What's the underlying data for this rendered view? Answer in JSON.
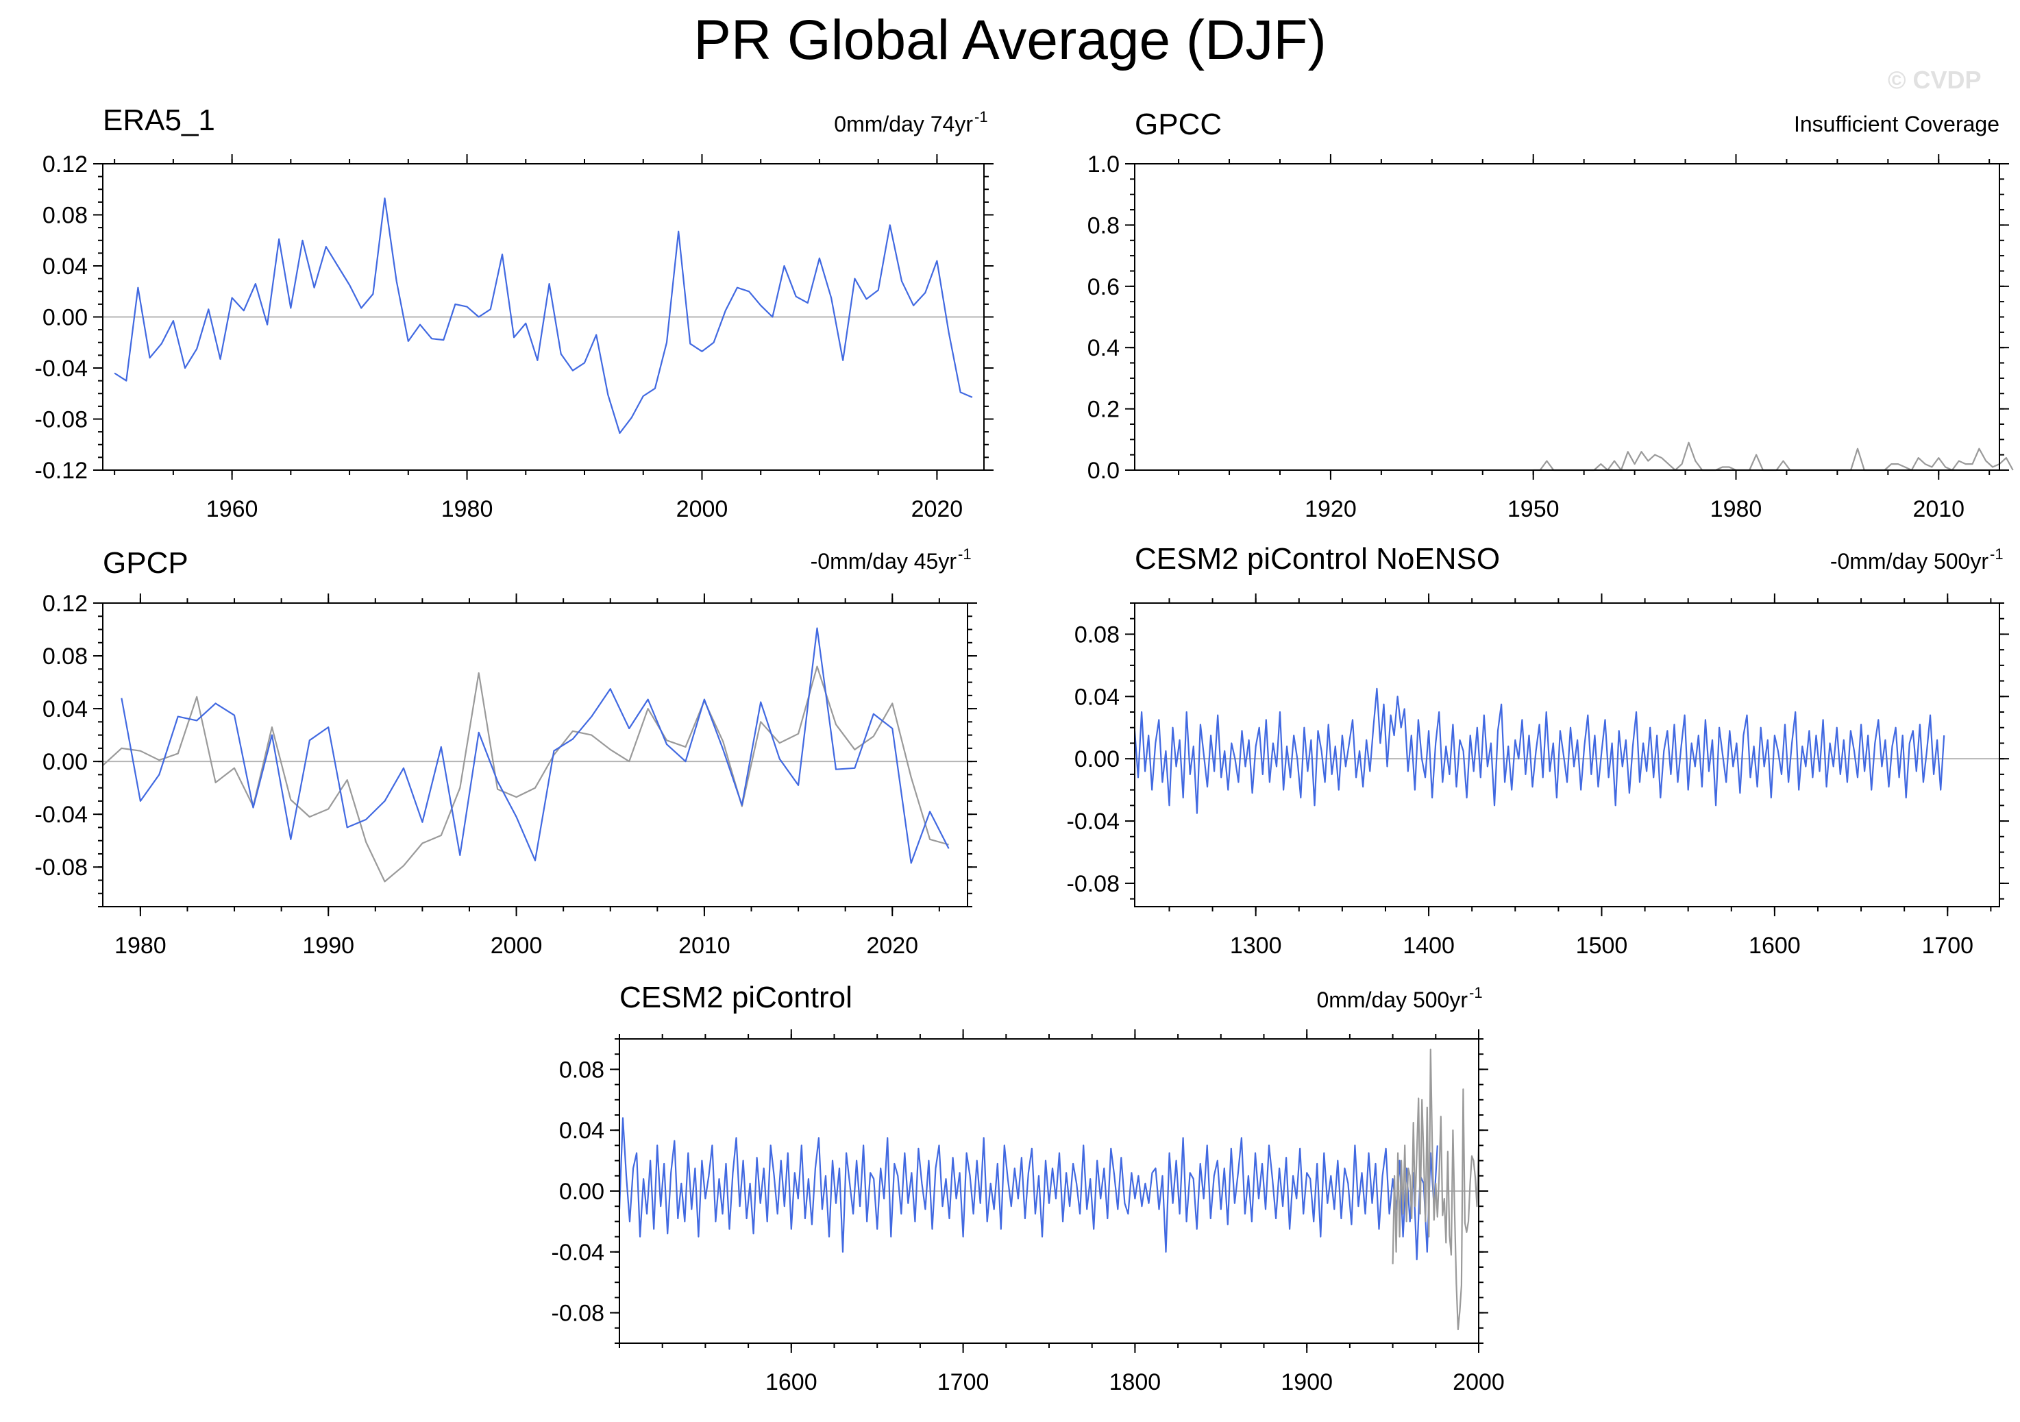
{
  "title": "PR Global Average (DJF)",
  "watermark": "© CVDP",
  "colors": {
    "primary": "#4169e1",
    "reference": "#9a9a9a",
    "zero_line": "#b4b4b4"
  },
  "chart_data": [
    {
      "id": "era5",
      "type": "line",
      "title": "ERA5_1",
      "trend_label": "0mm/day 74yr",
      "trend_sup": "-1",
      "xlim": [
        1949,
        2024
      ],
      "ylim": [
        -0.12,
        0.12
      ],
      "xticks": [
        1960,
        1980,
        2000,
        2020
      ],
      "yticks": [
        "0.12",
        "0.08",
        "0.04",
        "0.00",
        "-0.04",
        "-0.08",
        "-0.12"
      ],
      "series": [
        {
          "role": "primary",
          "x_start": 1950,
          "values": [
            -0.044,
            -0.05,
            0.023,
            -0.032,
            -0.021,
            -0.003,
            -0.04,
            -0.025,
            0.006,
            -0.033,
            0.015,
            0.005,
            0.026,
            -0.006,
            0.061,
            0.007,
            0.06,
            0.023,
            0.055,
            0.04,
            0.025,
            0.007,
            0.018,
            0.093,
            0.028,
            -0.019,
            -0.006,
            -0.017,
            -0.018,
            0.01,
            0.008,
            0.0,
            0.006,
            0.049,
            -0.016,
            -0.005,
            -0.034,
            0.026,
            -0.029,
            -0.042,
            -0.036,
            -0.014,
            -0.061,
            -0.091,
            -0.079,
            -0.062,
            -0.056,
            -0.02,
            0.067,
            -0.021,
            -0.027,
            -0.02,
            0.005,
            0.023,
            0.02,
            0.009,
            0.0,
            0.04,
            0.016,
            0.011,
            0.046,
            0.015,
            -0.034,
            0.03,
            0.014,
            0.021,
            0.072,
            0.028,
            0.009,
            0.019,
            0.044,
            -0.012,
            -0.059,
            -0.063
          ]
        }
      ]
    },
    {
      "id": "gpcc",
      "type": "line",
      "title": "GPCC",
      "trend_label": "Insufficient Coverage",
      "trend_sup": "",
      "xlim": [
        1891,
        2019
      ],
      "ylim": [
        0,
        1
      ],
      "xticks": [
        1920,
        1950,
        1980,
        2010
      ],
      "yticks": [
        "1.0",
        "0.8",
        "0.6",
        "0.4",
        "0.2",
        "0.0"
      ],
      "series": [
        {
          "role": "reference",
          "segments": [
            {
              "x_start": 1950,
              "values": [
                0.0,
                0.0,
                0.03,
                0.0,
                0.0,
                0.0,
                0.0,
                0.0,
                0.0,
                0.0,
                0.02,
                0.0,
                0.03,
                0.0,
                0.06,
                0.02,
                0.06,
                0.03,
                0.05,
                0.04,
                0.02,
                0.0,
                0.02,
                0.09,
                0.03,
                0.0,
                0.0,
                0.0,
                0.01,
                0.01,
                0.0,
                0.0,
                0.0,
                0.05,
                0.0,
                0.0,
                0.0,
                0.03,
                0.0,
                0.0,
                0.0,
                0.0,
                0.0,
                0.0,
                0.0,
                0.0,
                0.0,
                0.0,
                0.07,
                0.0,
                0.0,
                0.0,
                0.0,
                0.02,
                0.02,
                0.01,
                0.0,
                0.04,
                0.02,
                0.01,
                0.04,
                0.01,
                0.0,
                0.03,
                0.02,
                0.02,
                0.07,
                0.03,
                0.01,
                0.02,
                0.04,
                0.0
              ]
            }
          ]
        }
      ]
    },
    {
      "id": "gpcp",
      "type": "line",
      "title": "GPCP",
      "trend_label": "-0mm/day 45yr",
      "trend_sup": "-1",
      "xlim": [
        1978,
        2024
      ],
      "ylim": [
        -0.11,
        0.12
      ],
      "xticks": [
        1980,
        1990,
        2000,
        2010,
        2020
      ],
      "yticks": [
        "0.12",
        "0.08",
        "0.04",
        "0.00",
        "-0.04",
        "-0.08"
      ],
      "series": [
        {
          "role": "reference",
          "x_start": 1978,
          "values": [
            -0.003,
            0.01,
            0.008,
            0.001,
            0.006,
            0.049,
            -0.016,
            -0.005,
            -0.034,
            0.026,
            -0.029,
            -0.042,
            -0.036,
            -0.014,
            -0.061,
            -0.091,
            -0.079,
            -0.062,
            -0.056,
            -0.02,
            0.067,
            -0.021,
            -0.027,
            -0.02,
            0.005,
            0.023,
            0.02,
            0.009,
            0.0,
            0.04,
            0.016,
            0.011,
            0.046,
            0.015,
            -0.034,
            0.03,
            0.014,
            0.021,
            0.072,
            0.028,
            0.009,
            0.019,
            0.044,
            -0.012,
            -0.059,
            -0.063
          ]
        },
        {
          "role": "primary",
          "x_start": 1979,
          "values": [
            0.048,
            -0.03,
            -0.01,
            0.034,
            0.031,
            0.044,
            0.035,
            -0.035,
            0.02,
            -0.059,
            0.016,
            0.026,
            -0.05,
            -0.044,
            -0.03,
            -0.005,
            -0.046,
            0.011,
            -0.071,
            0.022,
            -0.015,
            -0.042,
            -0.075,
            0.008,
            0.017,
            0.034,
            0.055,
            0.025,
            0.047,
            0.013,
            0.0,
            0.047,
            0.009,
            -0.033,
            0.045,
            0.002,
            -0.018,
            0.101,
            -0.006,
            -0.005,
            0.036,
            0.025,
            -0.077,
            -0.038,
            -0.066
          ]
        }
      ]
    },
    {
      "id": "noenso",
      "type": "line",
      "title": "CESM2 piControl NoENSO",
      "trend_label": "-0mm/day 500yr",
      "trend_sup": "-1",
      "xlim": [
        1230,
        1730
      ],
      "ylim": [
        -0.095,
        0.1
      ],
      "xticks": [
        1300,
        1400,
        1500,
        1600,
        1700
      ],
      "yticks": [
        "0.08",
        "0.04",
        "0.00",
        "-0.04",
        "-0.08"
      ],
      "series": [
        {
          "role": "primary",
          "x_start": 1230,
          "x_step": 2,
          "values": [
            0.018,
            -0.012,
            0.03,
            -0.008,
            0.015,
            -0.02,
            0.01,
            0.025,
            -0.015,
            0.005,
            -0.03,
            0.02,
            -0.005,
            0.012,
            -0.025,
            0.03,
            -0.01,
            0.008,
            -0.035,
            0.022,
            0.002,
            -0.018,
            0.015,
            -0.008,
            0.028,
            -0.012,
            0.005,
            -0.02,
            0.01,
            0.0,
            -0.015,
            0.018,
            -0.005,
            0.012,
            -0.022,
            0.008,
            0.02,
            -0.01,
            0.025,
            -0.015,
            0.01,
            -0.005,
            0.03,
            -0.02,
            0.008,
            -0.012,
            0.015,
            0.0,
            -0.025,
            0.02,
            -0.008,
            0.012,
            -0.03,
            0.018,
            0.005,
            -0.015,
            0.022,
            -0.01,
            0.008,
            -0.02,
            0.015,
            -0.005,
            0.01,
            0.025,
            -0.012,
            0.005,
            -0.018,
            0.012,
            -0.008,
            0.02,
            0.045,
            0.01,
            0.035,
            -0.005,
            0.028,
            0.015,
            0.04,
            0.02,
            0.032,
            -0.008,
            0.015,
            -0.02,
            0.025,
            0.0,
            -0.012,
            0.018,
            -0.025,
            0.01,
            0.03,
            -0.015,
            0.008,
            -0.01,
            0.022,
            -0.018,
            0.012,
            0.005,
            -0.025,
            0.015,
            -0.008,
            0.02,
            -0.012,
            0.028,
            -0.005,
            0.01,
            -0.03,
            0.018,
            0.035,
            -0.015,
            0.008,
            -0.02,
            0.012,
            0.0,
            0.025,
            -0.01,
            0.015,
            -0.018,
            0.005,
            0.022,
            -0.012,
            0.03,
            -0.008,
            0.01,
            -0.025,
            0.018,
            0.002,
            -0.015,
            0.02,
            -0.005,
            0.012,
            -0.02,
            0.008,
            0.028,
            -0.01,
            0.015,
            -0.018,
            0.005,
            0.025,
            -0.012,
            0.01,
            -0.03,
            0.018,
            -0.005,
            0.012,
            -0.022,
            0.008,
            0.03,
            -0.015,
            0.01,
            -0.008,
            0.02,
            -0.012,
            0.015,
            -0.025,
            0.005,
            0.018,
            -0.01,
            0.022,
            -0.015,
            0.008,
            0.028,
            -0.02,
            0.01,
            -0.005,
            0.015,
            -0.018,
            0.025,
            -0.008,
            0.012,
            -0.03,
            0.02,
            0.002,
            -0.015,
            0.018,
            -0.005,
            0.01,
            -0.022,
            0.015,
            0.028,
            -0.012,
            0.008,
            -0.018,
            0.02,
            -0.005,
            0.012,
            -0.025,
            0.015,
            0.005,
            -0.01,
            0.022,
            -0.015,
            0.01,
            0.03,
            -0.02,
            0.008,
            -0.005,
            0.018,
            -0.012,
            0.015,
            -0.008,
            0.025,
            -0.018,
            0.01,
            -0.005,
            0.02,
            -0.01,
            0.012,
            -0.015,
            0.018,
            0.005,
            -0.012,
            0.022,
            -0.008,
            0.015,
            -0.02,
            0.01,
            0.025,
            -0.005,
            0.012,
            -0.018,
            0.008,
            0.02,
            -0.012,
            0.015,
            -0.025,
            0.01,
            0.018,
            -0.008,
            0.022,
            -0.015,
            0.005,
            0.028,
            -0.01,
            0.012,
            -0.02,
            0.015
          ]
        }
      ]
    },
    {
      "id": "picontrol",
      "type": "line",
      "title": "CESM2 piControl",
      "trend_label": "0mm/day 500yr",
      "trend_sup": "-1",
      "xlim": [
        1500,
        2000
      ],
      "ylim": [
        -0.1,
        0.1
      ],
      "xticks": [
        1600,
        1700,
        1800,
        1900,
        2000
      ],
      "yticks": [
        "0.08",
        "0.04",
        "0.00",
        "-0.04",
        "-0.08"
      ],
      "series": [
        {
          "role": "primary",
          "x_start": 1500,
          "x_step": 2,
          "values": [
            -0.012,
            0.048,
            0.01,
            -0.02,
            0.015,
            0.025,
            -0.03,
            0.008,
            -0.015,
            0.02,
            -0.025,
            0.03,
            -0.01,
            0.018,
            -0.028,
            0.012,
            0.033,
            -0.018,
            0.005,
            -0.02,
            0.025,
            -0.012,
            0.015,
            -0.03,
            0.02,
            -0.005,
            0.01,
            0.03,
            -0.02,
            0.008,
            -0.015,
            0.018,
            -0.025,
            0.012,
            0.035,
            -0.01,
            0.02,
            -0.018,
            0.005,
            -0.028,
            0.022,
            -0.008,
            0.015,
            -0.02,
            0.03,
            0.01,
            -0.015,
            0.02,
            -0.01,
            0.025,
            -0.025,
            0.012,
            -0.005,
            0.03,
            -0.018,
            0.008,
            -0.022,
            0.015,
            0.035,
            -0.012,
            0.01,
            -0.03,
            0.02,
            -0.008,
            0.015,
            -0.04,
            0.025,
            0.005,
            -0.015,
            0.02,
            -0.01,
            0.03,
            -0.02,
            0.012,
            0.008,
            -0.025,
            0.015,
            -0.005,
            0.035,
            -0.03,
            0.018,
            0.01,
            -0.015,
            0.025,
            -0.008,
            0.012,
            -0.02,
            0.028,
            0.005,
            -0.012,
            0.02,
            -0.025,
            0.015,
            0.03,
            -0.01,
            0.008,
            -0.018,
            0.022,
            -0.005,
            0.012,
            -0.03,
            0.025,
            0.01,
            -0.015,
            0.02,
            -0.008,
            0.035,
            -0.02,
            0.005,
            -0.012,
            0.018,
            -0.025,
            0.03,
            0.008,
            -0.01,
            0.015,
            -0.005,
            0.022,
            -0.018,
            0.012,
            0.028,
            -0.015,
            0.01,
            -0.03,
            0.02,
            -0.008,
            0.015,
            -0.005,
            0.025,
            -0.02,
            0.012,
            -0.01,
            0.018,
            0.005,
            -0.015,
            0.03,
            -0.012,
            0.008,
            -0.025,
            0.02,
            -0.005,
            0.015,
            -0.018,
            0.028,
            0.01,
            -0.012,
            0.022,
            -0.008,
            -0.015,
            0.012,
            -0.005,
            0.01,
            -0.01,
            0.005,
            -0.008,
            0.012,
            0.015,
            -0.012,
            0.01,
            -0.04,
            0.025,
            -0.008,
            0.02,
            -0.015,
            0.035,
            -0.02,
            0.012,
            0.008,
            -0.025,
            0.018,
            -0.005,
            0.03,
            -0.018,
            0.01,
            0.02,
            -0.012,
            0.015,
            -0.022,
            0.028,
            -0.008,
            0.012,
            0.035,
            -0.015,
            0.01,
            -0.02,
            0.025,
            -0.005,
            0.018,
            -0.012,
            0.03,
            0.008,
            -0.018,
            0.015,
            -0.01,
            0.022,
            -0.025,
            0.01,
            -0.005,
            0.028,
            -0.015,
            0.012,
            0.008,
            -0.02,
            0.018,
            -0.03,
            0.025,
            -0.008,
            0.01,
            -0.012,
            0.02,
            -0.018,
            0.015,
            0.005,
            -0.022,
            0.03,
            -0.01,
            0.012,
            -0.015,
            0.025,
            -0.008,
            0.018,
            -0.025,
            0.01,
            0.028,
            -0.015,
            0.008,
            -0.012,
            0.02,
            -0.03,
            0.015,
            -0.02,
            0.012,
            -0.045,
            0.01,
            0.005,
            -0.04,
            0.025,
            -0.01,
            0.03
          ]
        },
        {
          "role": "reference",
          "x_start": 1950,
          "values": [
            -0.048,
            0.01,
            -0.04,
            0.025,
            -0.03,
            0.02,
            -0.015,
            0.03,
            -0.02,
            0.015,
            0.01,
            -0.018,
            0.045,
            -0.01,
            0.025,
            0.061,
            -0.015,
            0.06,
            0.023,
            -0.02,
            0.055,
            -0.03,
            0.093,
            0.028,
            -0.019,
            0.005,
            -0.017,
            0.01,
            0.049,
            -0.016,
            -0.005,
            -0.034,
            0.026,
            -0.029,
            -0.042,
            0.04,
            -0.014,
            -0.061,
            -0.091,
            -0.079,
            -0.062,
            0.067,
            -0.021,
            -0.027,
            -0.02,
            0.005,
            0.023,
            0.02,
            0.009,
            -0.01,
            0.03
          ]
        }
      ]
    }
  ]
}
